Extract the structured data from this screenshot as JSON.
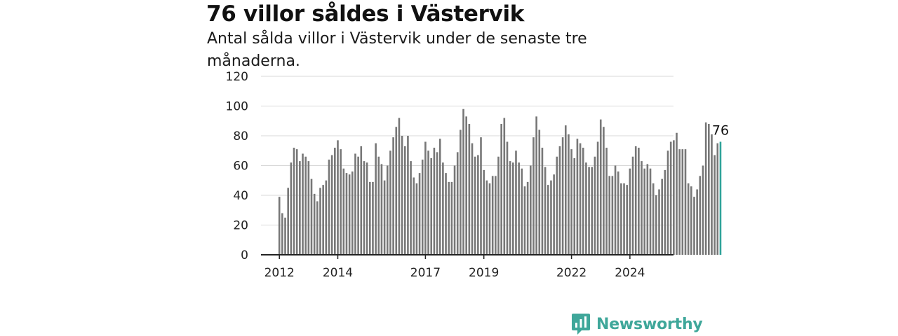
{
  "title": "76 villor såldes i Västervik",
  "subtitle": "Antal sålda villor i Västervik under de senaste tre månaderna.",
  "brand": {
    "name": "Newsworthy",
    "icon": "newsworthy-logo-icon"
  },
  "colors": {
    "bar": "#777777",
    "highlight": "#2fa39a",
    "grid": "#d9d9d9",
    "axis": "#222222",
    "brand": "#3fa79a"
  },
  "chart_data": {
    "type": "bar",
    "title": "",
    "xlabel": "",
    "ylabel": "",
    "ylim": [
      0,
      120
    ],
    "y_ticks": [
      0,
      20,
      40,
      60,
      80,
      100,
      120
    ],
    "x_tick_labels": [
      {
        "label": "2012",
        "index": 0
      },
      {
        "label": "2014",
        "index": 20
      },
      {
        "label": "2017",
        "index": 50
      },
      {
        "label": "2019",
        "index": 70
      },
      {
        "label": "2022",
        "index": 100
      },
      {
        "label": "2024",
        "index": 120
      }
    ],
    "grid": true,
    "highlight_label": "76",
    "values": [
      39,
      28,
      25,
      45,
      62,
      72,
      71,
      63,
      68,
      66,
      63,
      51,
      41,
      36,
      45,
      47,
      50,
      64,
      67,
      72,
      77,
      71,
      58,
      55,
      54,
      56,
      68,
      66,
      73,
      63,
      62,
      49,
      49,
      75,
      66,
      61,
      50,
      60,
      70,
      79,
      86,
      92,
      80,
      73,
      80,
      63,
      52,
      48,
      55,
      64,
      76,
      70,
      65,
      72,
      69,
      78,
      62,
      55,
      49,
      49,
      60,
      69,
      84,
      98,
      93,
      88,
      75,
      66,
      67,
      79,
      57,
      50,
      48,
      53,
      53,
      66,
      88,
      92,
      76,
      63,
      62,
      70,
      62,
      58,
      46,
      49,
      60,
      79,
      93,
      84,
      72,
      59,
      47,
      50,
      54,
      66,
      73,
      79,
      87,
      81,
      71,
      65,
      78,
      75,
      72,
      62,
      59,
      59,
      66,
      76,
      91,
      86,
      72,
      53,
      53,
      60,
      56,
      48,
      48,
      47,
      58,
      66,
      73,
      72,
      63,
      58,
      61,
      58,
      48,
      40,
      44,
      51,
      57,
      70,
      76,
      77,
      82,
      71,
      71,
      71,
      48,
      46,
      39,
      44,
      53,
      60,
      89,
      88,
      81,
      67,
      75,
      76
    ]
  }
}
